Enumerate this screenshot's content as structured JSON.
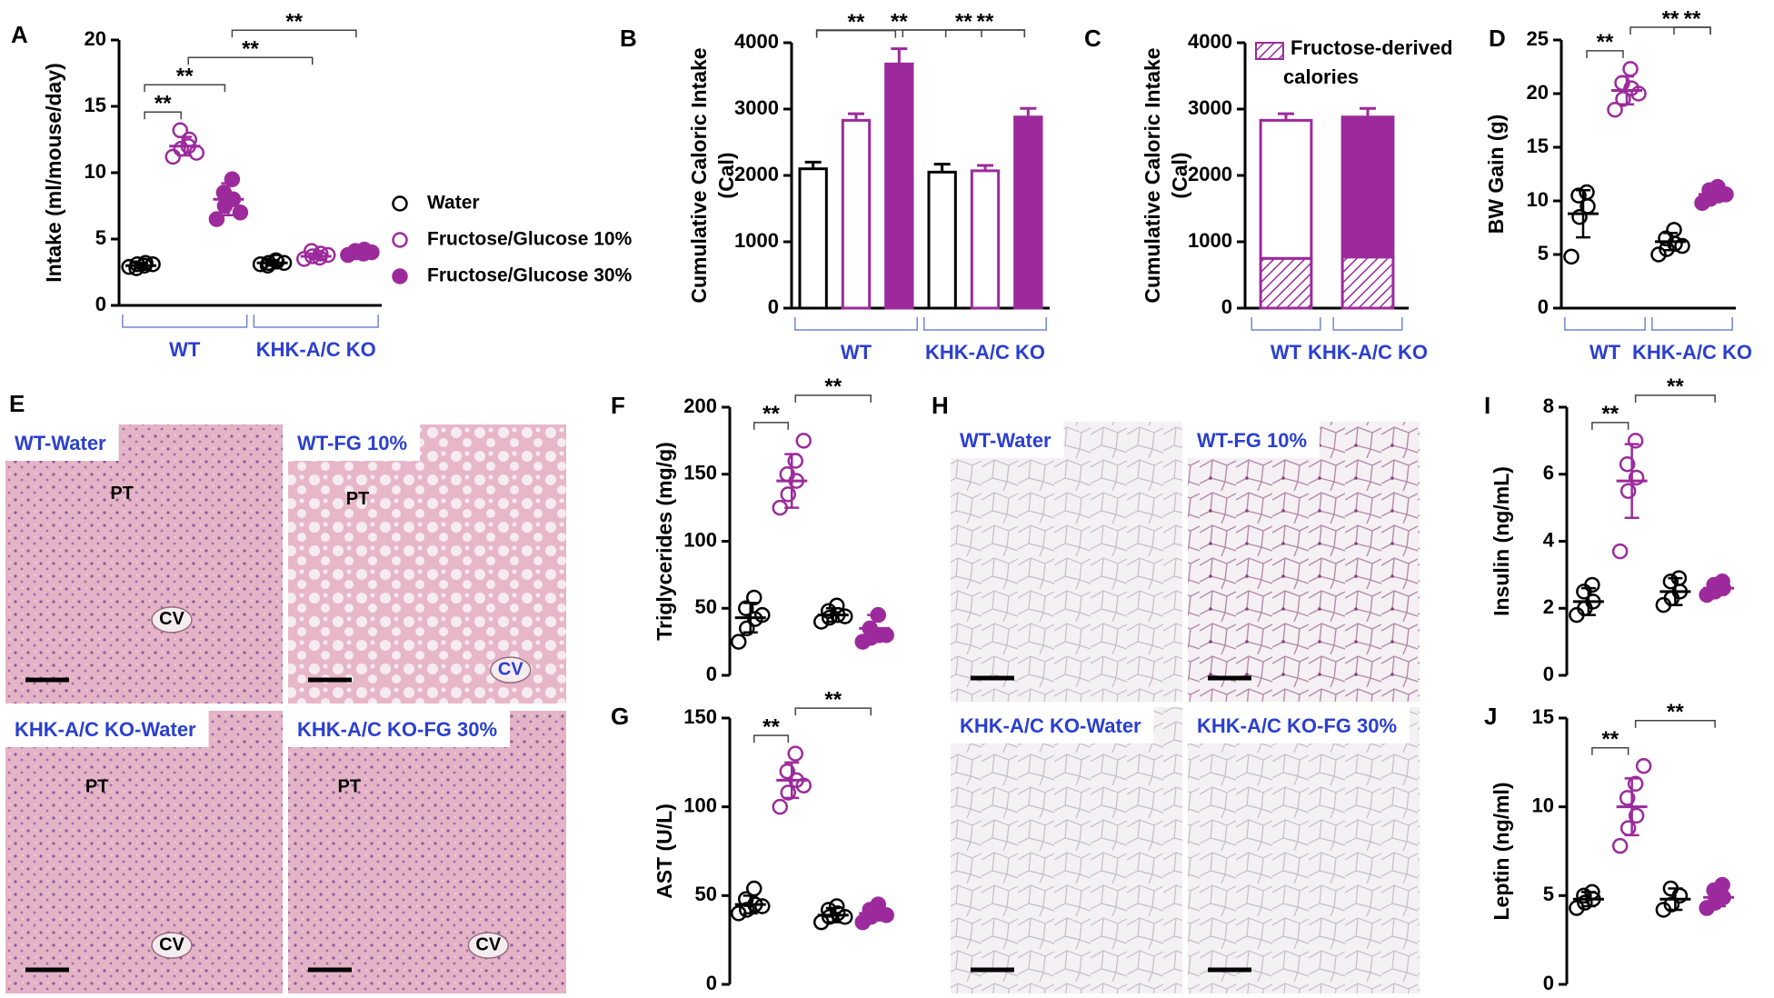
{
  "chart_data": [
    {
      "type": "strip",
      "panel": "A",
      "ylabel": "Intake (ml/mouse/day)",
      "ylim": [
        0,
        20
      ],
      "yticks": [
        0,
        5,
        10,
        15,
        20
      ],
      "columns": [
        {
          "color": "#000000",
          "filled": false,
          "points": [
            2.9,
            3.1,
            3.2,
            2.8,
            3.0,
            3.1
          ],
          "mean": 3.0,
          "sd": 0.2
        },
        {
          "color": "#9c2a9c",
          "filled": false,
          "points": [
            11.2,
            11.8,
            12.5,
            13.2,
            12.0,
            11.5
          ],
          "mean": 12.0,
          "sd": 0.7
        },
        {
          "color": "#9c2a9c",
          "filled": true,
          "points": [
            6.5,
            7.5,
            8.0,
            8.5,
            9.5,
            7.0
          ],
          "mean": 8.0,
          "sd": 1.2
        },
        {
          "color": "#000000",
          "filled": false,
          "points": [
            3.1,
            3.2,
            3.3,
            3.0,
            3.4,
            3.2
          ],
          "mean": 3.2,
          "sd": 0.2
        },
        {
          "color": "#9c2a9c",
          "filled": false,
          "points": [
            3.5,
            3.7,
            3.9,
            4.1,
            3.6,
            3.8
          ],
          "mean": 3.7,
          "sd": 0.2
        },
        {
          "color": "#9c2a9c",
          "filled": true,
          "points": [
            3.8,
            4.0,
            4.2,
            4.1,
            3.9,
            4.0
          ],
          "mean": 4.0,
          "sd": 0.2
        }
      ],
      "groups": [
        {
          "label": "WT",
          "span": [
            0,
            2
          ]
        },
        {
          "label": "KHK-A/C KO",
          "span": [
            3,
            5
          ]
        }
      ],
      "legend": [
        {
          "name": "Water",
          "color": "#000000",
          "filled": false
        },
        {
          "name": "Fructose/Glucose 10%",
          "color": "#9c2a9c",
          "filled": false
        },
        {
          "name": "Fructose/Glucose 30%",
          "color": "#9c2a9c",
          "filled": true
        }
      ],
      "brackets": [
        {
          "label": "**",
          "from": 0,
          "to": 1
        },
        {
          "label": "**",
          "from": 0,
          "to": 2
        },
        {
          "label": "**",
          "from": 1,
          "to": 4
        },
        {
          "label": "**",
          "from": 2,
          "to": 5
        }
      ]
    },
    {
      "type": "bar",
      "panel": "B",
      "ylabel": [
        "Cumulative Caloric Intake",
        "(Cal)"
      ],
      "ylim": [
        0,
        4000
      ],
      "yticks": [
        0,
        1000,
        2000,
        3000,
        4000
      ],
      "columns": [
        {
          "color": "#000000",
          "filled": false,
          "value": 2100,
          "error": 100
        },
        {
          "color": "#9c2a9c",
          "filled": false,
          "value": 2830,
          "error": 100
        },
        {
          "color": "#9c2a9c",
          "filled": true,
          "value": 3680,
          "error": 230
        },
        {
          "color": "#000000",
          "filled": false,
          "value": 2050,
          "error": 120
        },
        {
          "color": "#9c2a9c",
          "filled": false,
          "value": 2070,
          "error": 80
        },
        {
          "color": "#9c2a9c",
          "filled": true,
          "value": 2880,
          "error": 130
        }
      ],
      "groups": [
        {
          "label": "WT",
          "span": [
            0,
            2
          ]
        },
        {
          "label": "KHK-A/C KO",
          "span": [
            3,
            5
          ]
        }
      ],
      "brackets": [
        {
          "label": "**",
          "from": 0,
          "to": 2
        },
        {
          "label": "**",
          "from": 2,
          "to": 5
        },
        {
          "label": "**",
          "from": 3,
          "to": 5
        },
        {
          "label": "**",
          "from": 0,
          "to": 4
        }
      ]
    },
    {
      "type": "stacked",
      "panel": "C",
      "ylabel": [
        "Cumulative Caloric Intake",
        "(Cal)"
      ],
      "ylim": [
        0,
        4000
      ],
      "yticks": [
        0,
        1000,
        2000,
        3000,
        4000
      ],
      "columns": [
        {
          "color": "#9c2a9c",
          "filled": false,
          "values": [
            750,
            2080
          ],
          "error": 100
        },
        {
          "color": "#9c2a9c",
          "filled": true,
          "values": [
            770,
            2110
          ],
          "error": 130
        }
      ],
      "groups": [
        {
          "label": "WT",
          "span": [
            0,
            0
          ]
        },
        {
          "label": "KHK-A/C KO",
          "span": [
            1,
            1
          ]
        }
      ],
      "legend": [
        {
          "name": [
            "Fructose-derived",
            "calories"
          ],
          "color": "#9c2a9c",
          "hatched": true
        }
      ],
      "brackets": []
    },
    {
      "type": "strip",
      "panel": "D",
      "ylabel": "BW Gain (g)",
      "ylim": [
        0,
        25
      ],
      "yticks": [
        0,
        5,
        10,
        15,
        20,
        25
      ],
      "columns": [
        {
          "color": "#000000",
          "filled": false,
          "points": [
            4.8,
            8.5,
            9.5,
            10.5,
            10.8
          ],
          "mean": 8.8,
          "sd": 2.2
        },
        {
          "color": "#9c2a9c",
          "filled": false,
          "points": [
            18.5,
            19.5,
            20.5,
            21.0,
            22.3,
            20.0
          ],
          "mean": 20.3,
          "sd": 1.3
        },
        {
          "color": "#000000",
          "filled": false,
          "points": [
            5.0,
            5.5,
            6.0,
            6.5,
            7.3,
            5.8
          ],
          "mean": 6.2,
          "sd": 0.8
        },
        {
          "color": "#9c2a9c",
          "filled": true,
          "points": [
            9.8,
            10.2,
            10.5,
            11.0,
            11.3,
            10.6
          ],
          "mean": 10.6,
          "sd": 0.6
        }
      ],
      "groups": [
        {
          "label": "WT",
          "span": [
            0,
            1
          ]
        },
        {
          "label": "KHK-A/C KO",
          "span": [
            2,
            3
          ]
        }
      ],
      "brackets": [
        {
          "label": "**",
          "from": 0,
          "to": 1
        },
        {
          "label": "**",
          "from": 1,
          "to": 3
        },
        {
          "label": "**",
          "from": 2,
          "to": 3
        }
      ]
    },
    {
      "type": "strip",
      "panel": "F",
      "ylabel": "Triglycerides (mg/g)",
      "ylim": [
        0,
        200
      ],
      "yticks": [
        0,
        50,
        100,
        150,
        200
      ],
      "columns": [
        {
          "color": "#000000",
          "filled": false,
          "points": [
            25,
            35,
            42,
            50,
            58,
            45
          ],
          "mean": 43,
          "sd": 11
        },
        {
          "color": "#9c2a9c",
          "filled": false,
          "points": [
            125,
            135,
            145,
            150,
            160,
            175
          ],
          "mean": 145,
          "sd": 20
        },
        {
          "color": "#000000",
          "filled": false,
          "points": [
            40,
            43,
            45,
            48,
            52,
            44
          ],
          "mean": 45,
          "sd": 5
        },
        {
          "color": "#9c2a9c",
          "filled": true,
          "points": [
            25,
            28,
            30,
            35,
            45,
            30
          ],
          "mean": 35,
          "sd": 10
        }
      ],
      "brackets": [
        {
          "label": "**",
          "from": 0,
          "to": 1
        },
        {
          "label": "**",
          "from": 1,
          "to": 3
        }
      ]
    },
    {
      "type": "strip",
      "panel": "G",
      "ylabel": "AST (U/L)",
      "ylim": [
        0,
        150
      ],
      "yticks": [
        0,
        50,
        100,
        150
      ],
      "columns": [
        {
          "color": "#000000",
          "filled": false,
          "points": [
            40,
            42,
            45,
            48,
            54,
            44
          ],
          "mean": 45,
          "sd": 5
        },
        {
          "color": "#9c2a9c",
          "filled": false,
          "points": [
            100,
            108,
            115,
            120,
            130,
            112
          ],
          "mean": 115,
          "sd": 10
        },
        {
          "color": "#000000",
          "filled": false,
          "points": [
            35,
            38,
            40,
            42,
            44,
            38
          ],
          "mean": 39,
          "sd": 4
        },
        {
          "color": "#9c2a9c",
          "filled": true,
          "points": [
            35,
            38,
            40,
            42,
            45,
            39
          ],
          "mean": 40,
          "sd": 4
        }
      ],
      "brackets": [
        {
          "label": "**",
          "from": 0,
          "to": 1
        },
        {
          "label": "**",
          "from": 1,
          "to": 3
        }
      ]
    },
    {
      "type": "strip",
      "panel": "I",
      "ylabel": "Insulin (ng/mL)",
      "ylim": [
        0,
        8
      ],
      "yticks": [
        0,
        2,
        4,
        6,
        8
      ],
      "columns": [
        {
          "color": "#000000",
          "filled": false,
          "points": [
            1.8,
            2.0,
            2.2,
            2.5,
            2.7
          ],
          "mean": 2.2,
          "sd": 0.4
        },
        {
          "color": "#9c2a9c",
          "filled": false,
          "points": [
            3.7,
            5.5,
            5.9,
            6.3,
            7.0
          ],
          "mean": 5.8,
          "sd": 1.1
        },
        {
          "color": "#000000",
          "filled": false,
          "points": [
            2.1,
            2.3,
            2.5,
            2.8,
            2.9
          ],
          "mean": 2.5,
          "sd": 0.4
        },
        {
          "color": "#9c2a9c",
          "filled": true,
          "points": [
            2.4,
            2.5,
            2.6,
            2.7,
            2.8
          ],
          "mean": 2.6,
          "sd": 0.2
        }
      ],
      "brackets": [
        {
          "label": "**",
          "from": 0,
          "to": 1
        },
        {
          "label": "**",
          "from": 1,
          "to": 3
        }
      ]
    },
    {
      "type": "strip",
      "panel": "J",
      "ylabel": "Leptin (ng/ml)",
      "ylim": [
        0,
        15
      ],
      "yticks": [
        0,
        5,
        10,
        15
      ],
      "columns": [
        {
          "color": "#000000",
          "filled": false,
          "points": [
            4.3,
            4.6,
            4.8,
            5.0,
            5.2
          ],
          "mean": 4.8,
          "sd": 0.4
        },
        {
          "color": "#9c2a9c",
          "filled": false,
          "points": [
            7.8,
            8.8,
            9.5,
            10.5,
            11.3,
            12.3
          ],
          "mean": 10.0,
          "sd": 1.6
        },
        {
          "color": "#000000",
          "filled": false,
          "points": [
            4.2,
            4.5,
            5.0,
            5.4
          ],
          "mean": 4.8,
          "sd": 0.6
        },
        {
          "color": "#9c2a9c",
          "filled": true,
          "points": [
            4.3,
            4.6,
            4.9,
            5.3,
            5.6
          ],
          "mean": 4.9,
          "sd": 0.5
        }
      ],
      "brackets": [
        {
          "label": "**",
          "from": 0,
          "to": 1
        },
        {
          "label": "**",
          "from": 1,
          "to": 3
        }
      ]
    }
  ],
  "figures": [
    {
      "panel": "E",
      "tiles": [
        {
          "label": "WT-Water",
          "notes": [
            "PT",
            "CV"
          ]
        },
        {
          "label": "WT-FG 10%",
          "notes": [
            "PT",
            "CV"
          ]
        },
        {
          "label": "KHK-A/C KO-Water",
          "notes": [
            "PT",
            "CV"
          ]
        },
        {
          "label": "KHK-A/C KO-FG 30%",
          "notes": [
            "PT",
            "CV"
          ]
        }
      ]
    },
    {
      "panel": "H",
      "tiles": [
        {
          "label": "WT-Water"
        },
        {
          "label": "WT-FG 10%"
        },
        {
          "label": "KHK-A/C KO-Water"
        },
        {
          "label": "KHK-A/C KO-FG 30%"
        }
      ]
    }
  ]
}
